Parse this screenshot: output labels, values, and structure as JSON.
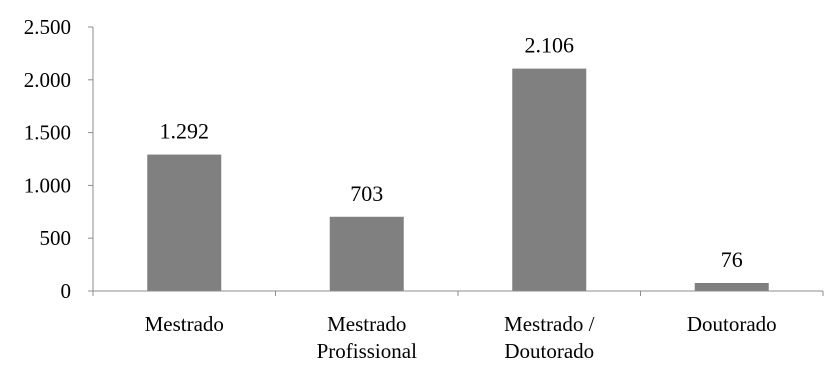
{
  "chart_data": {
    "type": "bar",
    "categories": [
      [
        "Mestrado"
      ],
      [
        "Mestrado",
        "Profissional"
      ],
      [
        "Mestrado /",
        "Doutorado"
      ],
      [
        "Doutorado"
      ]
    ],
    "values": [
      1292,
      703,
      2106,
      76
    ],
    "data_labels": [
      "1.292",
      "703",
      "2.106",
      "76"
    ],
    "y_ticks": [
      {
        "value": 0,
        "label": "0"
      },
      {
        "value": 500,
        "label": "500"
      },
      {
        "value": 1000,
        "label": "1.000"
      },
      {
        "value": 1500,
        "label": "1.500"
      },
      {
        "value": 2000,
        "label": "2.000"
      },
      {
        "value": 2500,
        "label": "2.500"
      }
    ],
    "ylim": [
      0,
      2500
    ],
    "title": "",
    "xlabel": "",
    "ylabel": "",
    "grid": false,
    "legend": "none",
    "colors": {
      "bar": "#808080",
      "axis": "#8c8c8c",
      "text": "#000000"
    }
  }
}
